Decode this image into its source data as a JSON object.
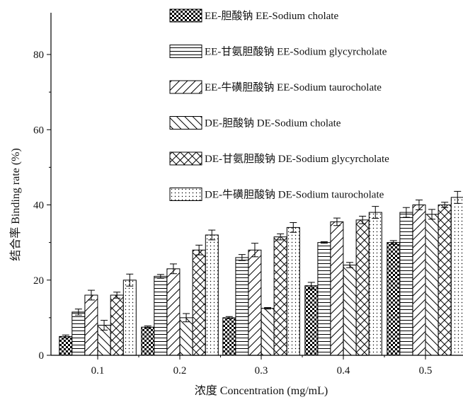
{
  "chart_data": {
    "type": "bar",
    "xlabel": "浓度 Concentration (mg/mL)",
    "ylabel": "结合率 Binding rate (%)",
    "categories": [
      "0.1",
      "0.2",
      "0.3",
      "0.4",
      "0.5"
    ],
    "ylim": [
      0,
      90
    ],
    "yticks": [
      0,
      20,
      40,
      60,
      80
    ],
    "legend_position": "top",
    "series": [
      {
        "name": "EE-胆酸钠 EE-Sodium cholate",
        "pattern": "checker",
        "values": [
          5.0,
          7.5,
          10.0,
          18.5,
          30.0
        ],
        "errors": [
          0.4,
          0.3,
          0.3,
          0.9,
          0.5
        ]
      },
      {
        "name": "EE-甘氨胆酸钠 EE-Sodium glycyrcholate",
        "pattern": "horizontal",
        "values": [
          11.5,
          21.0,
          26.0,
          30.0,
          38.0
        ],
        "errors": [
          0.8,
          0.5,
          0.8,
          0.2,
          1.3
        ]
      },
      {
        "name": "EE-牛磺胆酸钠 EE-Sodium taurocholate",
        "pattern": "diagonal-up",
        "values": [
          16.0,
          23.0,
          28.0,
          35.5,
          40.0
        ],
        "errors": [
          1.3,
          1.3,
          1.8,
          1.0,
          1.3
        ]
      },
      {
        "name": "DE-胆酸钠 DE-Sodium cholate",
        "pattern": "diagonal-down",
        "values": [
          8.0,
          10.0,
          12.5,
          24.0,
          37.5
        ],
        "errors": [
          1.3,
          1.1,
          0.2,
          0.7,
          1.3
        ]
      },
      {
        "name": "DE-甘氨胆酸钠 DE-Sodium glycyrcholate",
        "pattern": "crosshatch",
        "values": [
          16.0,
          28.0,
          31.5,
          36.0,
          40.0
        ],
        "errors": [
          0.8,
          1.3,
          0.8,
          1.0,
          0.7
        ]
      },
      {
        "name": "DE-牛磺胆酸钠 DE-Sodium taurocholate",
        "pattern": "dots",
        "values": [
          20.0,
          32.0,
          34.0,
          38.0,
          42.0
        ],
        "errors": [
          1.6,
          1.3,
          1.3,
          1.6,
          1.6
        ]
      }
    ]
  }
}
